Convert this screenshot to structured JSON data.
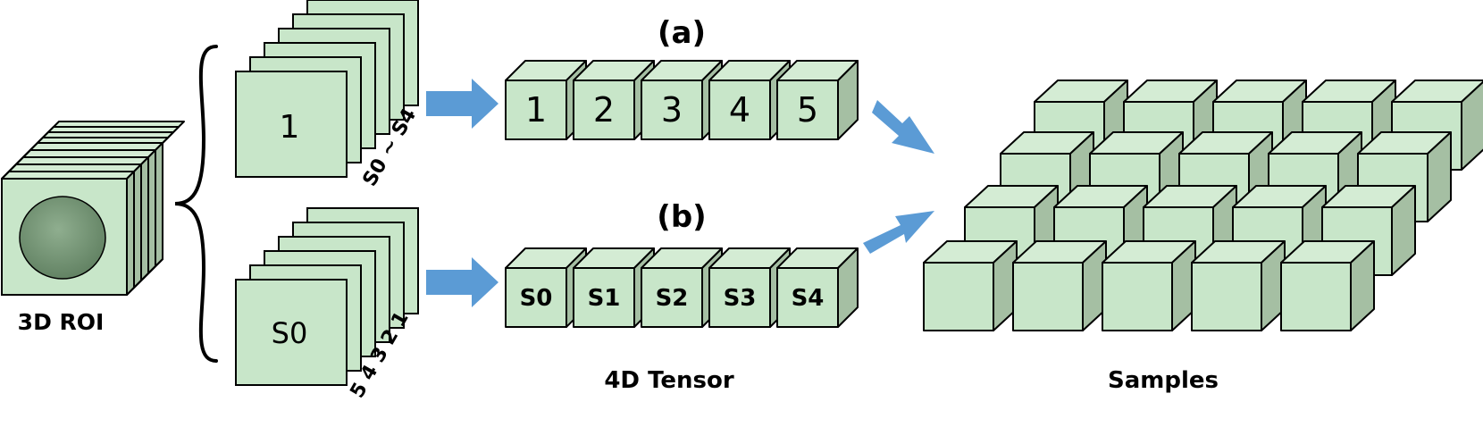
{
  "roi": {
    "label": "3D ROI"
  },
  "row_a": {
    "tag": "(a)",
    "front_label": "1",
    "stack_caption": "S0 ~ S4",
    "cubes": [
      "1",
      "2",
      "3",
      "4",
      "5"
    ]
  },
  "row_b": {
    "tag": "(b)",
    "front_label": "S0",
    "stack_caption": "5 4 3 2 1",
    "cubes": [
      "S0",
      "S1",
      "S2",
      "S3",
      "S4"
    ]
  },
  "tensor_label": "4D Tensor",
  "samples_label": "Samples",
  "colors": {
    "face_front": "#c8e6c9",
    "face_top": "#d4ecd4",
    "face_side": "#a5bfa3",
    "arrow": "#5b9bd5",
    "ellipse": "#6f8f6f"
  },
  "icons": [
    "curly-brace-icon",
    "right-arrow-icon"
  ]
}
